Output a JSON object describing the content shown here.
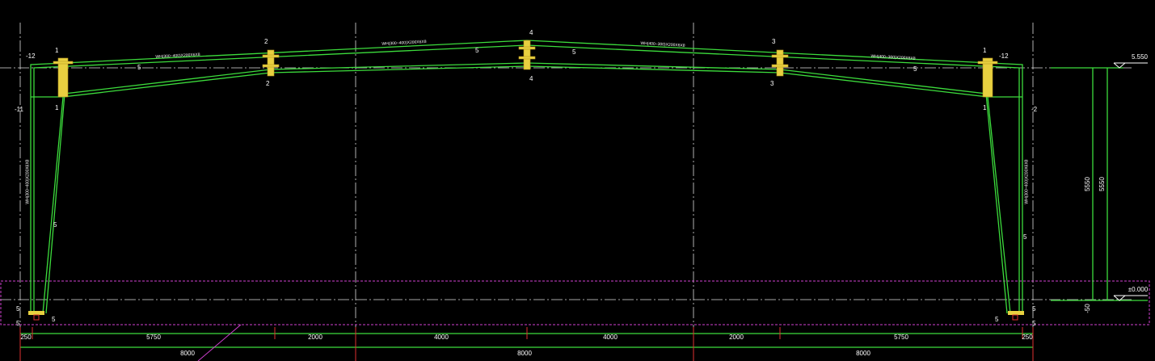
{
  "elevations": [
    "5.550",
    "±0.000"
  ],
  "vertical_dims": [
    "5550",
    "5550",
    "-50"
  ],
  "dims_row1": [
    "250",
    "5750",
    "2000",
    "4000",
    "4000",
    "2000",
    "5750",
    "250"
  ],
  "dims_row2": [
    "8000",
    "8000",
    "8000"
  ],
  "member_labels": [
    "WH(300~400)X200X6X8",
    "WH(300~400)X200X6X8",
    "WH(400~300)X200X6X8",
    "WH(400~300)X200X6X8",
    "WH(300~400)X200X6X8",
    "WH(300~400)X200X6X8"
  ],
  "section_marks": [
    "1",
    "1",
    "1",
    "1",
    "2",
    "2",
    "3",
    "3",
    "4",
    "4",
    "-12",
    "-11",
    "-12",
    "-2"
  ],
  "weld_marks": [
    "5",
    "5",
    "5",
    "5",
    "5",
    "5",
    "5",
    "5",
    "5",
    "5",
    "5",
    "5"
  ]
}
